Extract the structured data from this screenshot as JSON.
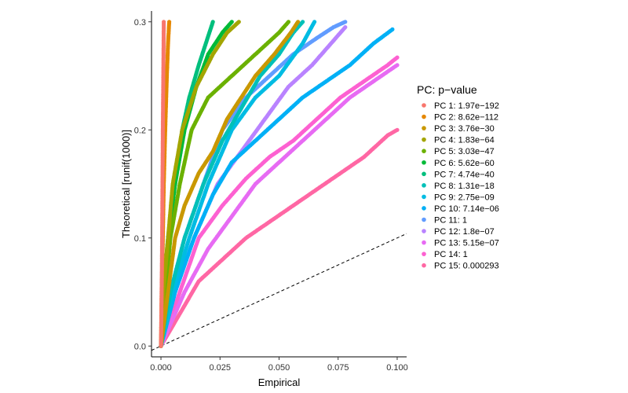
{
  "chart_data": {
    "type": "scatter",
    "title": "",
    "xlabel": "Empirical",
    "ylabel": "Theoretical [runif(1000)]",
    "xlim": [
      -0.004,
      0.104
    ],
    "ylim": [
      -0.01,
      0.31
    ],
    "x_ticks": [
      0.0,
      0.025,
      0.05,
      0.075,
      0.1
    ],
    "x_tick_labels": [
      "0.000",
      "0.025",
      "0.050",
      "0.075",
      "0.100"
    ],
    "y_ticks": [
      0.0,
      0.1,
      0.2,
      0.3
    ],
    "y_tick_labels": [
      "0.0",
      "0.1",
      "0.2",
      "0.3"
    ],
    "grid": false,
    "legend": {
      "title": "PC: p−value",
      "position": "right"
    },
    "reference_line": {
      "style": "dashed",
      "color": "#000000",
      "from": [
        -0.004,
        -0.004
      ],
      "to": [
        0.104,
        0.104
      ]
    },
    "series": [
      {
        "name": "PC 1: 1.97e−192",
        "color": "#F8766D",
        "points": [
          [
            0.0,
            0.0
          ],
          [
            0.0002,
            0.03
          ],
          [
            0.0005,
            0.1
          ],
          [
            0.0008,
            0.2
          ],
          [
            0.001,
            0.25
          ],
          [
            0.0012,
            0.3
          ]
        ]
      },
      {
        "name": "PC 2: 8.62e−112",
        "color": "#E58700",
        "points": [
          [
            0.0,
            0.0
          ],
          [
            0.0003,
            0.05
          ],
          [
            0.0008,
            0.1
          ],
          [
            0.0012,
            0.15
          ],
          [
            0.0018,
            0.2
          ],
          [
            0.0025,
            0.25
          ],
          [
            0.003,
            0.28
          ],
          [
            0.0035,
            0.3
          ]
        ]
      },
      {
        "name": "PC 3: 3.76e−30",
        "color": "#C99800",
        "points": [
          [
            0.0,
            0.0
          ],
          [
            0.003,
            0.05
          ],
          [
            0.006,
            0.1
          ],
          [
            0.01,
            0.13
          ],
          [
            0.016,
            0.16
          ],
          [
            0.022,
            0.18
          ],
          [
            0.028,
            0.21
          ],
          [
            0.034,
            0.23
          ],
          [
            0.04,
            0.25
          ],
          [
            0.048,
            0.27
          ],
          [
            0.055,
            0.29
          ],
          [
            0.058,
            0.3
          ]
        ]
      },
      {
        "name": "PC 4: 1.83e−64",
        "color": "#A3A500",
        "points": [
          [
            0.0,
            0.0
          ],
          [
            0.001,
            0.05
          ],
          [
            0.003,
            0.1
          ],
          [
            0.005,
            0.15
          ],
          [
            0.009,
            0.2
          ],
          [
            0.015,
            0.24
          ],
          [
            0.022,
            0.27
          ],
          [
            0.028,
            0.29
          ],
          [
            0.033,
            0.3
          ]
        ]
      },
      {
        "name": "PC 5: 3.03e−47",
        "color": "#6BB100",
        "points": [
          [
            0.0,
            0.0
          ],
          [
            0.002,
            0.05
          ],
          [
            0.004,
            0.1
          ],
          [
            0.008,
            0.15
          ],
          [
            0.013,
            0.2
          ],
          [
            0.02,
            0.23
          ],
          [
            0.03,
            0.25
          ],
          [
            0.04,
            0.27
          ],
          [
            0.05,
            0.29
          ],
          [
            0.054,
            0.3
          ]
        ]
      },
      {
        "name": "PC 6: 5.62e−60",
        "color": "#00BA38",
        "points": [
          [
            0.0,
            0.0
          ],
          [
            0.001,
            0.05
          ],
          [
            0.003,
            0.1
          ],
          [
            0.006,
            0.15
          ],
          [
            0.01,
            0.2
          ],
          [
            0.015,
            0.24
          ],
          [
            0.02,
            0.27
          ],
          [
            0.026,
            0.29
          ],
          [
            0.03,
            0.3
          ]
        ]
      },
      {
        "name": "PC 7: 4.74e−40",
        "color": "#00BF7D",
        "points": [
          [
            0.0,
            0.0
          ],
          [
            0.001,
            0.05
          ],
          [
            0.003,
            0.1
          ],
          [
            0.006,
            0.15
          ],
          [
            0.009,
            0.2
          ],
          [
            0.012,
            0.23
          ],
          [
            0.016,
            0.26
          ],
          [
            0.019,
            0.28
          ],
          [
            0.022,
            0.3
          ]
        ]
      },
      {
        "name": "PC 8: 1.31e−18",
        "color": "#00C0B8",
        "points": [
          [
            0.0,
            0.0
          ],
          [
            0.004,
            0.05
          ],
          [
            0.01,
            0.1
          ],
          [
            0.018,
            0.15
          ],
          [
            0.026,
            0.19
          ],
          [
            0.034,
            0.22
          ],
          [
            0.042,
            0.25
          ],
          [
            0.05,
            0.27
          ],
          [
            0.056,
            0.29
          ],
          [
            0.06,
            0.3
          ]
        ]
      },
      {
        "name": "PC 9: 2.75e−09",
        "color": "#00BCE3",
        "points": [
          [
            0.0,
            0.0
          ],
          [
            0.005,
            0.05
          ],
          [
            0.012,
            0.1
          ],
          [
            0.02,
            0.15
          ],
          [
            0.03,
            0.2
          ],
          [
            0.04,
            0.23
          ],
          [
            0.05,
            0.25
          ],
          [
            0.06,
            0.28
          ],
          [
            0.065,
            0.3
          ]
        ]
      },
      {
        "name": "PC 10: 7.14e−06",
        "color": "#00B0F6",
        "points": [
          [
            0.0,
            0.0
          ],
          [
            0.006,
            0.05
          ],
          [
            0.014,
            0.1
          ],
          [
            0.022,
            0.14
          ],
          [
            0.03,
            0.17
          ],
          [
            0.04,
            0.19
          ],
          [
            0.05,
            0.21
          ],
          [
            0.06,
            0.23
          ],
          [
            0.07,
            0.245
          ],
          [
            0.08,
            0.26
          ],
          [
            0.09,
            0.28
          ],
          [
            0.098,
            0.293
          ]
        ]
      },
      {
        "name": "PC 11: 1",
        "color": "#619CFF",
        "points": [
          [
            0.0,
            0.0
          ],
          [
            0.004,
            0.05
          ],
          [
            0.01,
            0.1
          ],
          [
            0.018,
            0.15
          ],
          [
            0.026,
            0.2
          ],
          [
            0.036,
            0.23
          ],
          [
            0.046,
            0.25
          ],
          [
            0.056,
            0.27
          ],
          [
            0.066,
            0.285
          ],
          [
            0.073,
            0.295
          ],
          [
            0.078,
            0.3
          ]
        ]
      },
      {
        "name": "PC 12: 1.8e−07",
        "color": "#B983FF",
        "points": [
          [
            0.0,
            0.0
          ],
          [
            0.006,
            0.05
          ],
          [
            0.014,
            0.1
          ],
          [
            0.024,
            0.15
          ],
          [
            0.034,
            0.18
          ],
          [
            0.044,
            0.21
          ],
          [
            0.054,
            0.24
          ],
          [
            0.064,
            0.26
          ],
          [
            0.072,
            0.28
          ],
          [
            0.078,
            0.295
          ]
        ]
      },
      {
        "name": "PC 13: 5.15e−07",
        "color": "#E76BF3",
        "points": [
          [
            0.0,
            0.0
          ],
          [
            0.01,
            0.05
          ],
          [
            0.02,
            0.09
          ],
          [
            0.03,
            0.12
          ],
          [
            0.04,
            0.15
          ],
          [
            0.05,
            0.17
          ],
          [
            0.06,
            0.19
          ],
          [
            0.07,
            0.21
          ],
          [
            0.08,
            0.23
          ],
          [
            0.09,
            0.245
          ],
          [
            0.1,
            0.26
          ]
        ]
      },
      {
        "name": "PC 14: 1",
        "color": "#FD61D1",
        "points": [
          [
            0.0,
            0.0
          ],
          [
            0.008,
            0.05
          ],
          [
            0.016,
            0.1
          ],
          [
            0.026,
            0.13
          ],
          [
            0.036,
            0.155
          ],
          [
            0.046,
            0.175
          ],
          [
            0.056,
            0.19
          ],
          [
            0.066,
            0.21
          ],
          [
            0.076,
            0.23
          ],
          [
            0.086,
            0.245
          ],
          [
            0.096,
            0.26
          ],
          [
            0.1,
            0.267
          ]
        ]
      },
      {
        "name": "PC 15: 0.000293",
        "color": "#FF67A4",
        "points": [
          [
            0.0,
            0.0
          ],
          [
            0.008,
            0.03
          ],
          [
            0.016,
            0.06
          ],
          [
            0.026,
            0.08
          ],
          [
            0.036,
            0.1
          ],
          [
            0.046,
            0.115
          ],
          [
            0.056,
            0.13
          ],
          [
            0.066,
            0.145
          ],
          [
            0.076,
            0.16
          ],
          [
            0.086,
            0.175
          ],
          [
            0.096,
            0.195
          ],
          [
            0.1,
            0.2
          ]
        ]
      }
    ]
  }
}
